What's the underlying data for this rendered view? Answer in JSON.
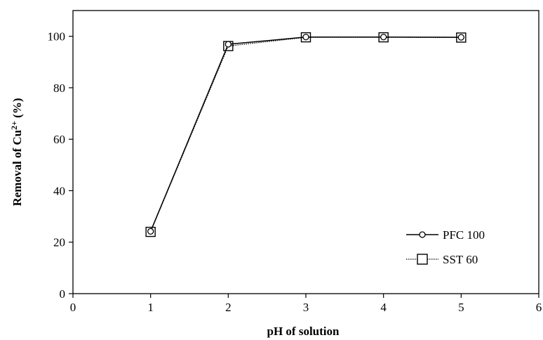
{
  "chart_data": {
    "type": "line",
    "title": "",
    "xlabel": "pH of solution",
    "ylabel": {
      "prefix": "Removal of Cu",
      "superscript": "2+",
      "suffix": " (%)"
    },
    "xlim": [
      0,
      6
    ],
    "ylim": [
      0,
      110
    ],
    "x_ticks": [
      0,
      1,
      2,
      3,
      4,
      5,
      6
    ],
    "y_ticks": [
      0,
      20,
      40,
      60,
      80,
      100
    ],
    "grid": false,
    "legend_position": "bottom-right",
    "series": [
      {
        "name": "PFC 100",
        "marker": "circle",
        "line_style": "solid",
        "color": "#000000",
        "x": [
          1,
          2,
          3,
          4,
          5
        ],
        "y": [
          24.2,
          96.9,
          99.7,
          99.7,
          99.6
        ]
      },
      {
        "name": "SST 60",
        "marker": "square",
        "line_style": "dotted",
        "color": "#000000",
        "x": [
          1,
          2,
          3,
          4,
          5
        ],
        "y": [
          24.0,
          96.2,
          99.6,
          99.6,
          99.5
        ]
      }
    ]
  }
}
